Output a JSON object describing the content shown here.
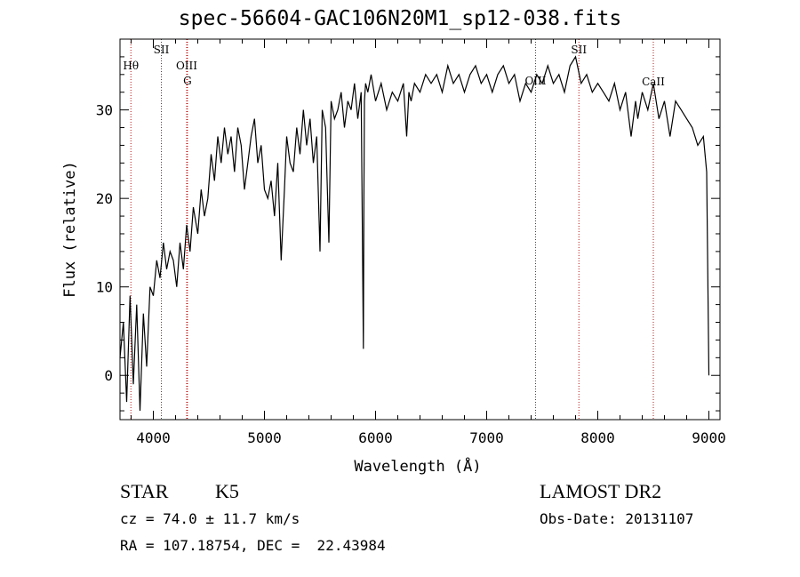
{
  "title": "spec-56604-GAC106N20M1_sp12-038.fits",
  "chart_data": {
    "type": "line",
    "xlabel": "Wavelength (Å)",
    "ylabel": "Flux (relative)",
    "xlim": [
      3700,
      9100
    ],
    "ylim": [
      -5,
      38
    ],
    "xticks": [
      4000,
      5000,
      6000,
      7000,
      8000,
      9000
    ],
    "yticks": [
      0,
      10,
      20,
      30
    ],
    "grid": false,
    "series": [
      {
        "x": [
          3700,
          3730,
          3760,
          3790,
          3820,
          3850,
          3880,
          3910,
          3940,
          3970,
          4000,
          4030,
          4060,
          4090,
          4120,
          4150,
          4180,
          4210,
          4240,
          4270,
          4300,
          4330,
          4360,
          4400,
          4430,
          4460,
          4490,
          4520,
          4550,
          4580,
          4610,
          4640,
          4670,
          4700,
          4730,
          4760,
          4790,
          4820,
          4850,
          4880,
          4910,
          4940,
          4970,
          5000,
          5030,
          5060,
          5090,
          5120,
          5150,
          5180,
          5200,
          5230,
          5260,
          5290,
          5320,
          5350,
          5380,
          5410,
          5440,
          5470,
          5500,
          5520,
          5550,
          5580,
          5600,
          5630,
          5660,
          5690,
          5720,
          5750,
          5780,
          5810,
          5840,
          5870,
          5890,
          5895,
          5900,
          5910,
          5930,
          5960,
          6000,
          6050,
          6100,
          6150,
          6200,
          6250,
          6280,
          6300,
          6320,
          6350,
          6400,
          6450,
          6500,
          6550,
          6600,
          6650,
          6700,
          6750,
          6800,
          6850,
          6900,
          6950,
          7000,
          7050,
          7100,
          7150,
          7200,
          7250,
          7300,
          7350,
          7400,
          7450,
          7500,
          7550,
          7600,
          7650,
          7700,
          7750,
          7800,
          7850,
          7900,
          7950,
          8000,
          8050,
          8100,
          8150,
          8200,
          8250,
          8300,
          8340,
          8360,
          8400,
          8450,
          8500,
          8550,
          8600,
          8650,
          8700,
          8750,
          8800,
          8850,
          8900,
          8950,
          8980,
          9000
        ],
        "y": [
          2,
          6,
          -3,
          9,
          -1,
          8,
          -4,
          7,
          1,
          10,
          9,
          13,
          11,
          15,
          12,
          14,
          13,
          10,
          15,
          12,
          17,
          14,
          19,
          16,
          21,
          18,
          20,
          25,
          22,
          27,
          24,
          28,
          25,
          27,
          23,
          28,
          26,
          21,
          24,
          27,
          29,
          24,
          26,
          21,
          20,
          22,
          18,
          24,
          13,
          21,
          27,
          24,
          23,
          28,
          25,
          30,
          26,
          29,
          24,
          27,
          14,
          30,
          28,
          15,
          31,
          29,
          30,
          32,
          28,
          31,
          30,
          33,
          29,
          32,
          3,
          20,
          31,
          33,
          32,
          34,
          31,
          33,
          30,
          32,
          31,
          33,
          27,
          32,
          31,
          33,
          32,
          34,
          33,
          34,
          32,
          35,
          33,
          34,
          32,
          34,
          35,
          33,
          34,
          32,
          34,
          35,
          33,
          34,
          31,
          33,
          32,
          34,
          33,
          35,
          33,
          34,
          32,
          35,
          36,
          33,
          34,
          32,
          33,
          32,
          31,
          33,
          30,
          32,
          27,
          31,
          29,
          32,
          30,
          33,
          29,
          31,
          27,
          31,
          30,
          29,
          28,
          26,
          27,
          23,
          0
        ]
      }
    ],
    "annotations": [
      {
        "label": "Hθ",
        "x": 3798
      },
      {
        "label": "SII",
        "x": 4072
      },
      {
        "label": "OIII",
        "x": 4300
      },
      {
        "label": "G",
        "x": 4307
      },
      {
        "label": "OIII",
        "x": 7440
      },
      {
        "label": "SII",
        "x": 7830
      },
      {
        "label": "CaII",
        "x": 8500
      }
    ]
  },
  "info": {
    "object_type": "STAR",
    "subclass": "K5",
    "survey": "LAMOST DR2",
    "cz": "cz = 74.0 ± 11.7 km/s",
    "obs_date": "Obs-Date: 20131107",
    "coords": "RA = 107.18754, DEC =  22.43984"
  }
}
